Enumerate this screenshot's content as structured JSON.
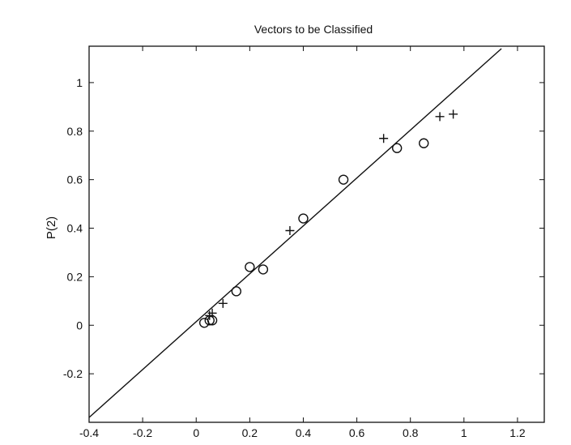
{
  "chart_data": {
    "type": "scatter",
    "title": "Vectors to be Classified",
    "xlabel": "",
    "ylabel": "P(2)",
    "xlim": [
      -0.4,
      1.3
    ],
    "ylim": [
      -0.4,
      1.15
    ],
    "xticks": [
      "-0.4",
      "-0.2",
      "0",
      "0.2",
      "0.4",
      "0.6",
      "0.8",
      "1",
      "1.2"
    ],
    "yticks": [
      "-0.2",
      "0",
      "0.2",
      "0.4",
      "0.6",
      "0.8",
      "1"
    ],
    "grid": false,
    "legend": "none",
    "series": [
      {
        "marker": "o",
        "color": "#111111",
        "x": [
          0.03,
          0.05,
          0.06,
          0.15,
          0.2,
          0.25,
          0.4,
          0.55,
          0.75,
          0.85
        ],
        "y": [
          0.01,
          0.02,
          0.02,
          0.14,
          0.24,
          0.23,
          0.44,
          0.6,
          0.73,
          0.75
        ]
      },
      {
        "marker": "+",
        "color": "#111111",
        "x": [
          0.05,
          0.06,
          0.1,
          0.35,
          0.7,
          0.91,
          0.96
        ],
        "y": [
          0.04,
          0.05,
          0.09,
          0.39,
          0.77,
          0.86,
          0.87
        ]
      }
    ],
    "line": {
      "x": [
        -0.4,
        1.14
      ],
      "y": [
        -0.38,
        1.14
      ],
      "color": "#111111"
    }
  }
}
